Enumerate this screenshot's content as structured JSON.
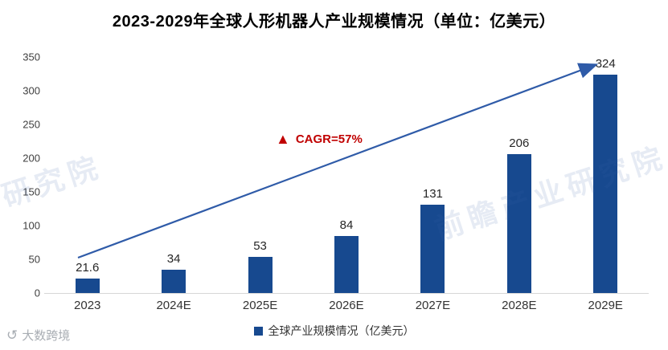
{
  "title": "2023-2029年全球人形机器人产业规模情况（单位：亿美元）",
  "chart_data": {
    "type": "bar",
    "title": "2023-2029年全球人形机器人产业规模情况（单位：亿美元）",
    "categories": [
      "2023",
      "2024E",
      "2025E",
      "2026E",
      "2027E",
      "2028E",
      "2029E"
    ],
    "values": [
      21.6,
      34,
      53,
      84,
      131,
      206,
      324
    ],
    "value_labels": [
      "21.6",
      "34",
      "53",
      "84",
      "131",
      "206",
      "324"
    ],
    "ylim": [
      0,
      350
    ],
    "yticks": [
      0,
      50,
      100,
      150,
      200,
      250,
      300,
      350
    ],
    "grid": false,
    "legend": "全球产业规模情况（亿美元）",
    "legend_position": "bottom",
    "bar_color": "#17498F",
    "trend_color": "#2F5BA8",
    "annotation": {
      "label": "CAGR=57%",
      "symbol": "▲",
      "color": "#C00000"
    }
  },
  "watermark": {
    "text": "前瞻产业研究院"
  },
  "footer": {
    "brand": "大数跨境"
  }
}
